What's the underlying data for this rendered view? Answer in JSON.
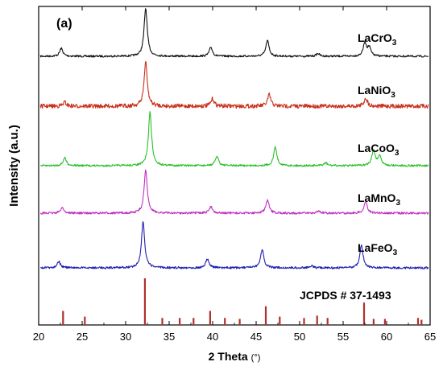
{
  "chart_data": {
    "type": "line",
    "panel_label": "(a)",
    "xlabel": "2 Theta",
    "xlabel_unit": "(°)",
    "ylabel": "Intensity (a.u.)",
    "xlim": [
      20,
      65
    ],
    "x_ticks": [
      20,
      25,
      30,
      35,
      40,
      45,
      50,
      55,
      60,
      65
    ],
    "y_ticks_shown": false,
    "series": [
      {
        "name": "LaCrO3",
        "label_main": "LaCrO",
        "label_sub": "3",
        "color": "#111111",
        "peaks": [
          [
            22.6,
            0.14
          ],
          [
            32.3,
            0.85
          ],
          [
            39.8,
            0.16
          ],
          [
            46.3,
            0.28
          ],
          [
            52.1,
            0.05
          ],
          [
            57.5,
            0.24
          ],
          [
            58.0,
            0.15
          ]
        ]
      },
      {
        "name": "LaNiO3",
        "label_main": "LaNiO",
        "label_sub": "3",
        "color": "#c8301c",
        "peaks": [
          [
            23.0,
            0.07
          ],
          [
            32.3,
            0.78
          ],
          [
            40.0,
            0.13
          ],
          [
            46.5,
            0.2
          ],
          [
            57.6,
            0.15
          ]
        ]
      },
      {
        "name": "LaCoO3",
        "label_main": "LaCoO",
        "label_sub": "3",
        "color": "#2bc02b",
        "peaks": [
          [
            23.0,
            0.14
          ],
          [
            32.8,
            0.95
          ],
          [
            40.5,
            0.17
          ],
          [
            47.2,
            0.33
          ],
          [
            53.0,
            0.05
          ],
          [
            58.5,
            0.28
          ],
          [
            59.2,
            0.17
          ]
        ]
      },
      {
        "name": "LaMnO3",
        "label_main": "LaMnO",
        "label_sub": "3",
        "color": "#c030c0",
        "peaks": [
          [
            22.7,
            0.1
          ],
          [
            32.3,
            0.75
          ],
          [
            39.8,
            0.12
          ],
          [
            46.3,
            0.23
          ],
          [
            52.2,
            0.04
          ],
          [
            57.6,
            0.21
          ]
        ]
      },
      {
        "name": "LaFeO3",
        "label_main": "LaFeO",
        "label_sub": "3",
        "color": "#2020b0",
        "peaks": [
          [
            22.3,
            0.12
          ],
          [
            32.0,
            0.82
          ],
          [
            39.4,
            0.16
          ],
          [
            45.7,
            0.33
          ],
          [
            51.4,
            0.04
          ],
          [
            57.1,
            0.4
          ]
        ]
      }
    ],
    "reference": {
      "name": "JCPDS # 37-1493",
      "color": "#b0302a",
      "lines": [
        [
          22.8,
          0.3
        ],
        [
          25.3,
          0.18
        ],
        [
          32.2,
          1.0
        ],
        [
          34.2,
          0.15
        ],
        [
          36.2,
          0.15
        ],
        [
          37.8,
          0.15
        ],
        [
          39.7,
          0.3
        ],
        [
          41.4,
          0.15
        ],
        [
          43.1,
          0.13
        ],
        [
          46.1,
          0.4
        ],
        [
          47.7,
          0.18
        ],
        [
          50.5,
          0.15
        ],
        [
          52.0,
          0.2
        ],
        [
          53.2,
          0.15
        ],
        [
          57.4,
          0.48
        ],
        [
          58.5,
          0.13
        ],
        [
          59.8,
          0.13
        ],
        [
          63.6,
          0.15
        ],
        [
          64.0,
          0.11
        ]
      ]
    }
  }
}
